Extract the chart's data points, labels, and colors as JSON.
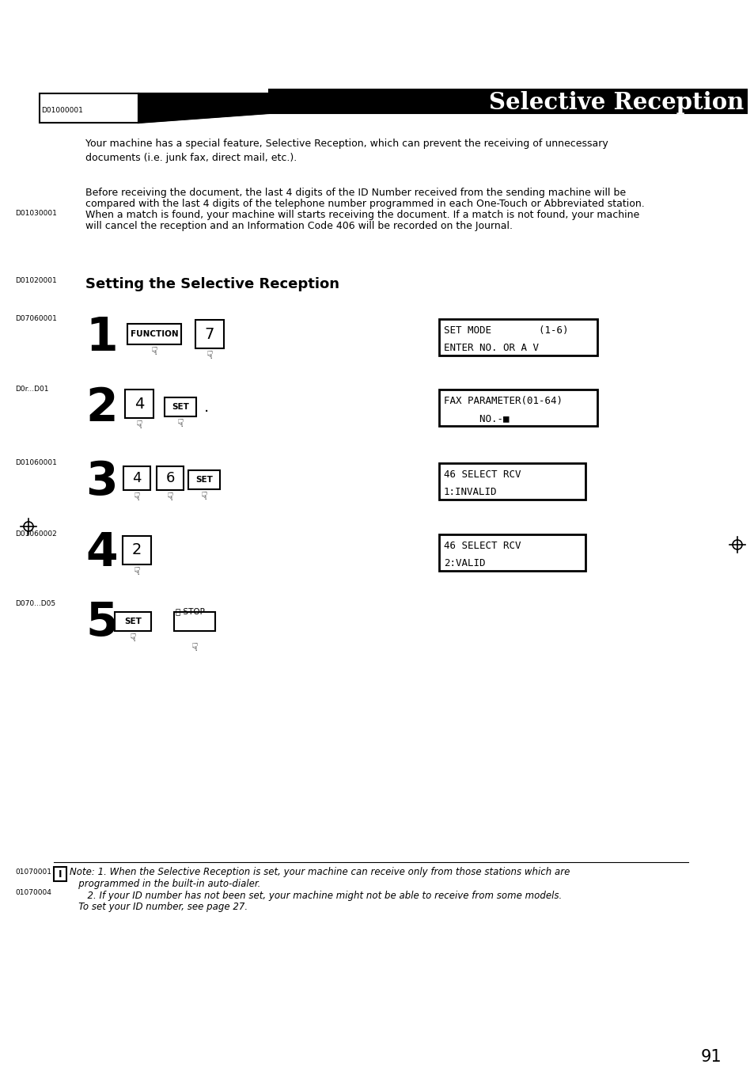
{
  "bg_color": "#ffffff",
  "page_number": "91",
  "title": "Selective Reception",
  "title_bar_left_label": "D01000001",
  "section_label": "D01020001",
  "section_title": "Setting the Selective Reception",
  "para1": "Your machine has a special feature, Selective Reception, which can prevent the receiving of unnecessary\ndocuments (i.e. junk fax, direct mail, etc.).",
  "para2_label": "D01030001",
  "para2_line1": "Before receiving the document, the last 4 digits of the ID Number received from the sending machine will be",
  "para2_line2": "compared with the last 4 digits of the telephone number programmed in each One-Touch or Abbreviated station.",
  "para2_line3": "When a match is found, your machine will starts receiving the document. If a match is not found, your machine",
  "para2_line4": "will cancel the reception and an Information Code 406 will be recorded on the Journal.",
  "step1_label": "D07060001",
  "step2_label": "D0r...D01",
  "step3_label": "D01060001",
  "step4_label": "D01060002",
  "step5_label": "D070...D05",
  "display1_line1": "SET MODE        (1-6)",
  "display1_line2": "ENTER NO. OR A V",
  "display2_line1": "FAX PARAMETER(01-64)",
  "display2_line2": "NO.-",
  "display3_line1": "46 SELECT RCV",
  "display3_line2": "1:INVALID",
  "display4_line1": "46 SELECT RCV",
  "display4_line2": "2:VALID",
  "note_label1": "01070001",
  "note_label2": "01070004",
  "note_text1": "1. When the Selective Reception is set, your machine can receive only from those stations which are",
  "note_text1b": "   programmed in the built-in auto-dialer.",
  "note_text2": "2. If your ID number has not been set, your machine might not be able to receive from some models.",
  "note_text2b": "   To set your ID number, see page 27."
}
